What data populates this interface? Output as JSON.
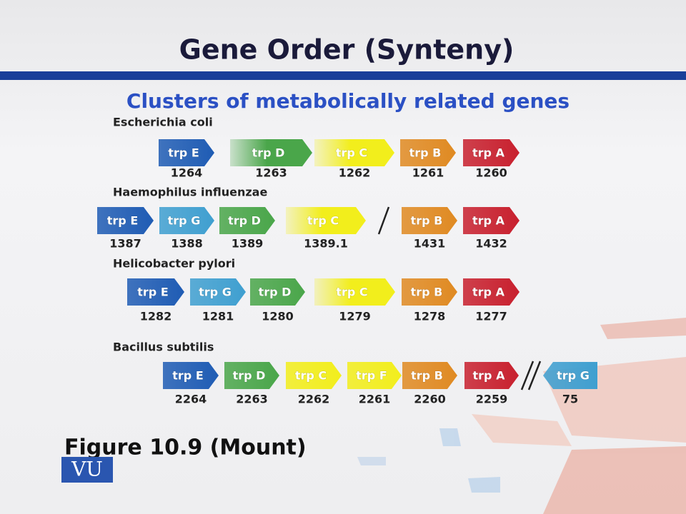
{
  "title": "Gene Order (Synteny)",
  "subtitle": "Clusters of metabolically related genes",
  "organisms": [
    {
      "name": "Escherichia coli",
      "genes": [
        {
          "label": "trp E",
          "number": "1264",
          "color": "#1f5cb4"
        },
        {
          "label": "trp D",
          "number": "1263",
          "color": "#4aa64a"
        },
        {
          "label": "trp C",
          "number": "1262",
          "color": "#f2ee1c"
        },
        {
          "label": "trp B",
          "number": "1261",
          "color": "#e08a22"
        },
        {
          "label": "trp A",
          "number": "1260",
          "color": "#c8202e"
        }
      ]
    },
    {
      "name": "Haemophilus influenzae",
      "genes": [
        {
          "label": "trp E",
          "number": "1387",
          "color": "#1f5cb4"
        },
        {
          "label": "trp G",
          "number": "1388",
          "color": "#3f9fd0"
        },
        {
          "label": "trp D",
          "number": "1389",
          "color": "#4aa64a"
        },
        {
          "label": "trp C",
          "number": "1389.1",
          "color": "#f2ee1c"
        },
        {
          "label": "trp B",
          "number": "1431",
          "color": "#e08a22"
        },
        {
          "label": "trp A",
          "number": "1432",
          "color": "#c8202e"
        }
      ]
    },
    {
      "name": "Helicobacter pylori",
      "genes": [
        {
          "label": "trp E",
          "number": "1282",
          "color": "#1f5cb4"
        },
        {
          "label": "trp G",
          "number": "1281",
          "color": "#3f9fd0"
        },
        {
          "label": "trp D",
          "number": "1280",
          "color": "#4aa64a"
        },
        {
          "label": "trp C",
          "number": "1279",
          "color": "#f2ee1c"
        },
        {
          "label": "trp B",
          "number": "1278",
          "color": "#e08a22"
        },
        {
          "label": "trp A",
          "number": "1277",
          "color": "#c8202e"
        }
      ]
    },
    {
      "name": "Bacillus subtilis",
      "genes": [
        {
          "label": "trp E",
          "number": "2264",
          "color": "#1f5cb4"
        },
        {
          "label": "trp D",
          "number": "2263",
          "color": "#4aa64a"
        },
        {
          "label": "trp C",
          "number": "2262",
          "color": "#f2ee1c"
        },
        {
          "label": "trp F",
          "number": "2261",
          "color": "#f2ee1c"
        },
        {
          "label": "trp B",
          "number": "2260",
          "color": "#e08a22"
        },
        {
          "label": "trp A",
          "number": "2259",
          "color": "#c8202e"
        },
        {
          "label": "trp G",
          "number": "75",
          "color": "#3f9fd0"
        }
      ]
    }
  ],
  "caption": "Figure 10.9 (Mount)",
  "logo": "VU"
}
